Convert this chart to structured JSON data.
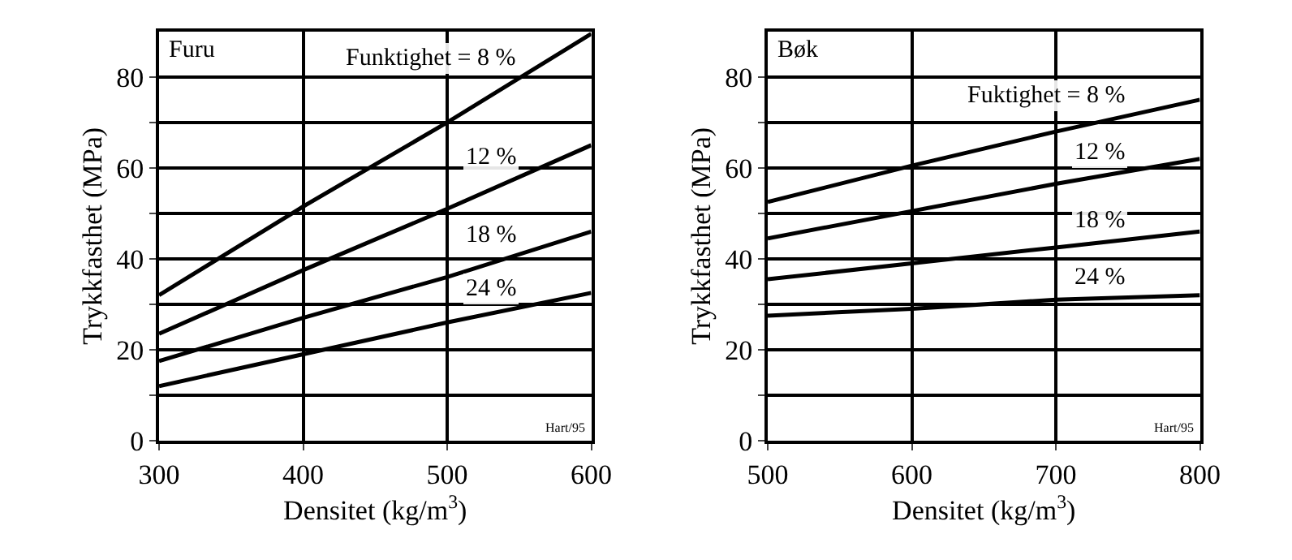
{
  "chart_data": [
    {
      "type": "line",
      "title": "Furu",
      "xlabel": "Densitet (kg/m$^{3}$)",
      "ylabel": "Trykkfasthet (MPa)",
      "x": [
        300,
        400,
        500,
        600
      ],
      "xlim": [
        300,
        600
      ],
      "ylim": [
        0,
        90
      ],
      "xticks": [
        300,
        400,
        500,
        600
      ],
      "yticks": [
        0,
        {
          "value": 10,
          "label": null
        },
        20,
        {
          "value": 30,
          "label": null
        },
        40,
        {
          "value": 50,
          "label": null
        },
        60,
        {
          "value": 70,
          "label": null
        },
        80
      ],
      "grid": true,
      "annotations": [
        "Hart/95"
      ],
      "series": [
        {
          "name": "Funktighet = 8 %",
          "color": "#000000",
          "values": [
            32,
            51.5,
            70,
            89.5
          ]
        },
        {
          "name": "12 %",
          "color": "#000000",
          "values": [
            23.5,
            37.5,
            51,
            65
          ]
        },
        {
          "name": "18 %",
          "color": "#000000",
          "values": [
            17.5,
            27,
            36,
            46
          ]
        },
        {
          "name": "24 %",
          "color": "#000000",
          "values": [
            12,
            19,
            26,
            32.5
          ]
        }
      ]
    },
    {
      "type": "line",
      "title": "Bøk",
      "xlabel": "Densitet (kg/m$^{3}$)",
      "ylabel": "Trykkfasthet (MPa)",
      "x": [
        500,
        600,
        700,
        800
      ],
      "xlim": [
        500,
        800
      ],
      "ylim": [
        0,
        90
      ],
      "xticks": [
        500,
        600,
        700,
        800
      ],
      "yticks": [
        0,
        {
          "value": 10,
          "label": null
        },
        20,
        {
          "value": 30,
          "label": null
        },
        40,
        {
          "value": 50,
          "label": null
        },
        60,
        {
          "value": 70,
          "label": null
        },
        80
      ],
      "grid": true,
      "annotations": [
        "Hart/95"
      ],
      "series": [
        {
          "name": "Fuktighet = 8 %",
          "color": "#000000",
          "values": [
            52.5,
            60.5,
            68,
            75
          ]
        },
        {
          "name": "12 %",
          "color": "#000000",
          "values": [
            44.5,
            50.5,
            56.5,
            62
          ]
        },
        {
          "name": "18 %",
          "color": "#000000",
          "values": [
            35.5,
            39,
            42.5,
            46
          ]
        },
        {
          "name": "24 %",
          "color": "#000000",
          "values": [
            27.5,
            29,
            31,
            32
          ]
        }
      ]
    }
  ]
}
